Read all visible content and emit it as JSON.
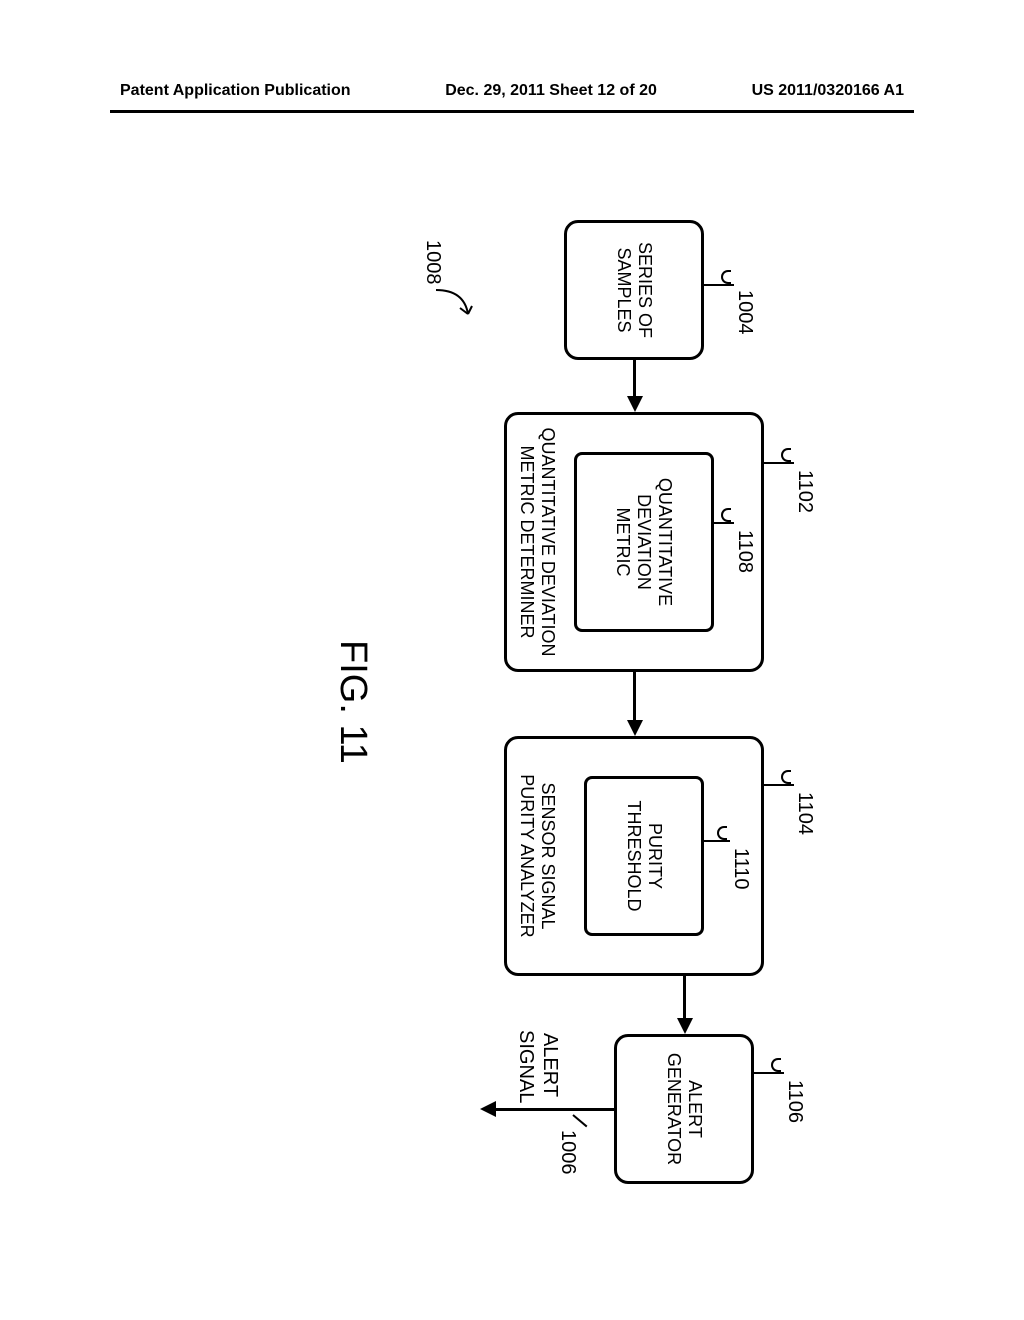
{
  "header": {
    "left": "Patent Application Publication",
    "center": "Dec. 29, 2011  Sheet 12 of 20",
    "right": "US 2011/0320166 A1"
  },
  "diagram": {
    "figure_label": "FIG. 11",
    "system_ref": "1008",
    "output_label": "ALERT\nSIGNAL",
    "output_ref": "1006",
    "blocks": {
      "samples": {
        "label": "SERIES OF\nSAMPLES",
        "ref": "1004"
      },
      "qdm": {
        "outer_label": "QUANTITATIVE DEVIATION\nMETRIC DETERMINER",
        "outer_ref": "1102",
        "inner_label": "QUANTITATIVE\nDEVIATION\nMETRIC",
        "inner_ref": "1108"
      },
      "purity": {
        "outer_label": "SENSOR SIGNAL\nPURITY ANALYZER",
        "outer_ref": "1104",
        "inner_label": "PURITY\nTHRESHOLD",
        "inner_ref": "1110"
      },
      "alert": {
        "label": "ALERT\nGENERATOR",
        "ref": "1106"
      }
    }
  },
  "style": {
    "border_color": "#000000",
    "background_color": "#ffffff",
    "font_family": "Arial, Helvetica, sans-serif",
    "block_font_size": 18,
    "ref_font_size": 20,
    "fig_font_size": 38,
    "border_width": 3,
    "border_radius": 14
  }
}
